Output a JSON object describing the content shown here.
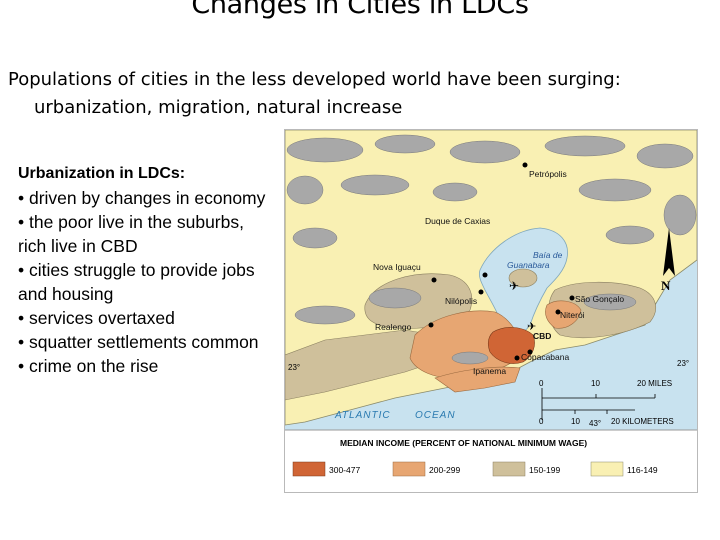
{
  "page": {
    "title": "Changes in Cities in LDCs",
    "intro_line1": "Populations of cities in the less developed world have been surging:",
    "intro_line2": "urbanization, migration, natural increase"
  },
  "bullets": {
    "heading": "Urbanization in LDCs:",
    "items": [
      "• driven by changes in economy",
      "• the poor live in the suburbs, rich live in CBD",
      "• cities struggle to provide jobs and housing",
      "• services overtaxed",
      "• squatter settlements common",
      "• crime on the rise"
    ]
  },
  "map": {
    "places": {
      "petropolis": "Petrópolis",
      "duque": "Duque de Caxias",
      "nova": "Nova Iguaçu",
      "bay1": "Baía de",
      "bay2": "Guanabara",
      "nilopolis": "Nilópolis",
      "sao": "São Gonçalo",
      "niteroi": "Niterói",
      "realengo": "Realengo",
      "cbd": "CBD",
      "copacabana": "Copacabana",
      "ipanema": "Ipanema",
      "ocean1": "ATLANTIC",
      "ocean2": "OCEAN"
    },
    "north": "N",
    "lat_left": "23°",
    "lat_right": "23°",
    "long": "43°",
    "scale": {
      "miles_ticks": [
        "0",
        "10",
        "20 MILES"
      ],
      "km_ticks": [
        "0",
        "10",
        "20 KILOMETERS"
      ]
    },
    "legend": {
      "title": "MEDIAN INCOME (PERCENT OF NATIONAL MINIMUM WAGE)",
      "items": [
        {
          "label": "300-477",
          "color": "#d06535"
        },
        {
          "label": "200-299",
          "color": "#e7a672"
        },
        {
          "label": "150-199",
          "color": "#cfc09b"
        },
        {
          "label": "116-149",
          "color": "#f9f0b3"
        }
      ]
    },
    "colors": {
      "water": "#c8e2ef",
      "mountain": "#a8a8a8"
    }
  }
}
